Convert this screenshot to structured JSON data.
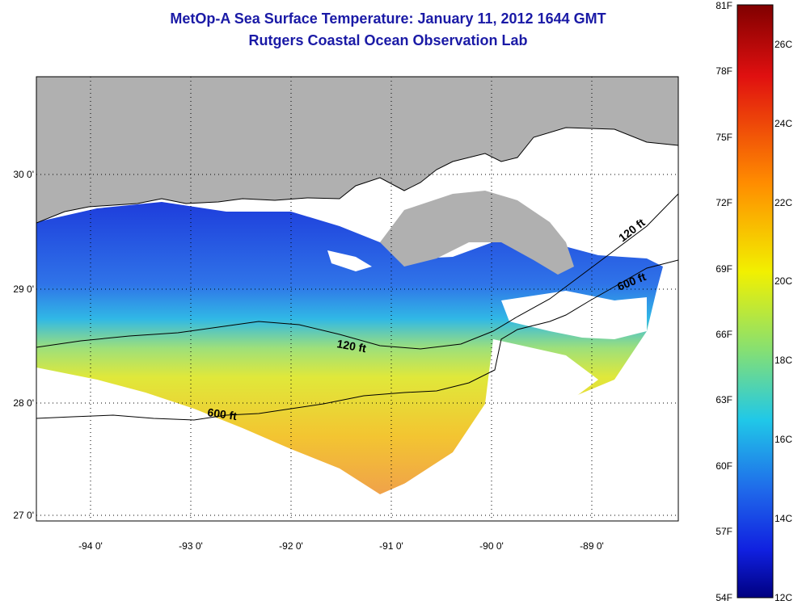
{
  "title": "MetOp-A Sea Surface Temperature:  January 11, 2012 1644 GMT",
  "subtitle": "Rutgers Coastal Ocean Observation Lab",
  "latitude_labels": [
    "30 0'",
    "29 0'",
    "28 0'",
    "27 0'"
  ],
  "longitude_labels": [
    "-94 0'",
    "-93 0'",
    "-92 0'",
    "-91 0'",
    "-90 0'",
    "-89 0'"
  ],
  "contour_labels": [
    "120 ft",
    "120 ft",
    "600 ft",
    "600 ft"
  ],
  "colorbar": {
    "fahrenheit_labels": [
      "81F",
      "78F",
      "75F",
      "72F",
      "69F",
      "66F",
      "63F",
      "60F",
      "57F",
      "54F"
    ],
    "celsius_labels": [
      "26C",
      "24C",
      "22C",
      "20C",
      "18C",
      "16C",
      "14C",
      "12C"
    ]
  },
  "colors": {
    "land": "#b0b0b0",
    "title": "#1a1aa6",
    "cold": "#1e3cdc",
    "warm": "#f0a020"
  }
}
